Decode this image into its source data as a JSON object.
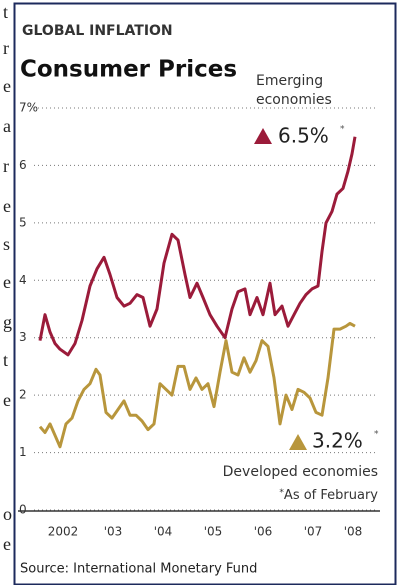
{
  "side_letters": [
    "t",
    "r",
    "e",
    "a",
    "r",
    "e",
    "s",
    "e",
    "g",
    "t",
    "e",
    "o",
    "e"
  ],
  "chart_data": {
    "type": "line",
    "kicker": "GLOBAL INFLATION",
    "title": "Consumer Prices",
    "source": "Source: International Monetary Fund",
    "note_marker": "*",
    "note": "As of February",
    "xlim": [
      2001.96,
      2008.5
    ],
    "xticks": [
      {
        "value": 2002.5,
        "label": "2002"
      },
      {
        "value": 2003.5,
        "label": "'03"
      },
      {
        "value": 2004.5,
        "label": "'04"
      },
      {
        "value": 2005.5,
        "label": "'05"
      },
      {
        "value": 2006.5,
        "label": "'06"
      },
      {
        "value": 2007.5,
        "label": "'07"
      },
      {
        "value": 2008.3,
        "label": "'08"
      }
    ],
    "ylim": [
      0,
      7
    ],
    "yticks": [
      0,
      1,
      2,
      3,
      4,
      5,
      6,
      {
        "value": 7,
        "label": "7%"
      }
    ],
    "grid": true,
    "series": [
      {
        "name": "Emerging economies",
        "color": "#9b1b3a",
        "end_label": "6.5%",
        "x": [
          2002.04,
          2002.14,
          2002.24,
          2002.34,
          2002.44,
          2002.6,
          2002.74,
          2002.88,
          2003.04,
          2003.18,
          2003.32,
          2003.44,
          2003.58,
          2003.72,
          2003.84,
          2003.98,
          2004.1,
          2004.24,
          2004.38,
          2004.52,
          2004.68,
          2004.8,
          2004.94,
          2005.04,
          2005.18,
          2005.3,
          2005.44,
          2005.58,
          2005.74,
          2005.88,
          2006.0,
          2006.14,
          2006.24,
          2006.38,
          2006.5,
          2006.64,
          2006.74,
          2006.88,
          2007.0,
          2007.12,
          2007.24,
          2007.36,
          2007.48,
          2007.6,
          2007.68,
          2007.76,
          2007.88,
          2007.98,
          2008.1,
          2008.2,
          2008.28,
          2008.34
        ],
        "values": [
          2.95,
          3.4,
          3.1,
          2.9,
          2.8,
          2.7,
          2.9,
          3.3,
          3.9,
          4.2,
          4.4,
          4.1,
          3.7,
          3.55,
          3.6,
          3.75,
          3.7,
          3.2,
          3.5,
          4.3,
          4.8,
          4.7,
          4.1,
          3.7,
          3.95,
          3.7,
          3.4,
          3.2,
          3.0,
          3.5,
          3.8,
          3.85,
          3.4,
          3.7,
          3.4,
          3.95,
          3.4,
          3.55,
          3.2,
          3.4,
          3.6,
          3.75,
          3.85,
          3.9,
          4.5,
          5.0,
          5.2,
          5.5,
          5.6,
          5.9,
          6.2,
          6.5
        ]
      },
      {
        "name": "Developed economies",
        "color": "#b8963c",
        "end_label": "3.2%",
        "x": [
          2002.04,
          2002.14,
          2002.24,
          2002.34,
          2002.44,
          2002.56,
          2002.68,
          2002.8,
          2002.92,
          2003.04,
          2003.16,
          2003.24,
          2003.36,
          2003.48,
          2003.6,
          2003.72,
          2003.84,
          2003.96,
          2004.08,
          2004.2,
          2004.32,
          2004.44,
          2004.56,
          2004.68,
          2004.8,
          2004.92,
          2005.04,
          2005.16,
          2005.28,
          2005.4,
          2005.52,
          2005.64,
          2005.76,
          2005.88,
          2006.0,
          2006.12,
          2006.24,
          2006.36,
          2006.48,
          2006.6,
          2006.72,
          2006.84,
          2006.96,
          2007.08,
          2007.2,
          2007.32,
          2007.44,
          2007.56,
          2007.68,
          2007.8,
          2007.92,
          2008.04,
          2008.16,
          2008.24,
          2008.34
        ],
        "values": [
          1.45,
          1.35,
          1.5,
          1.3,
          1.1,
          1.5,
          1.6,
          1.9,
          2.1,
          2.2,
          2.45,
          2.35,
          1.7,
          1.6,
          1.75,
          1.9,
          1.65,
          1.65,
          1.55,
          1.4,
          1.5,
          2.2,
          2.1,
          2.0,
          2.5,
          2.5,
          2.1,
          2.3,
          2.1,
          2.2,
          1.8,
          2.4,
          2.95,
          2.4,
          2.35,
          2.65,
          2.4,
          2.6,
          2.95,
          2.85,
          2.3,
          1.5,
          2.0,
          1.75,
          2.1,
          2.05,
          1.95,
          1.7,
          1.65,
          2.3,
          3.15,
          3.15,
          3.2,
          3.25,
          3.2
        ]
      }
    ]
  }
}
